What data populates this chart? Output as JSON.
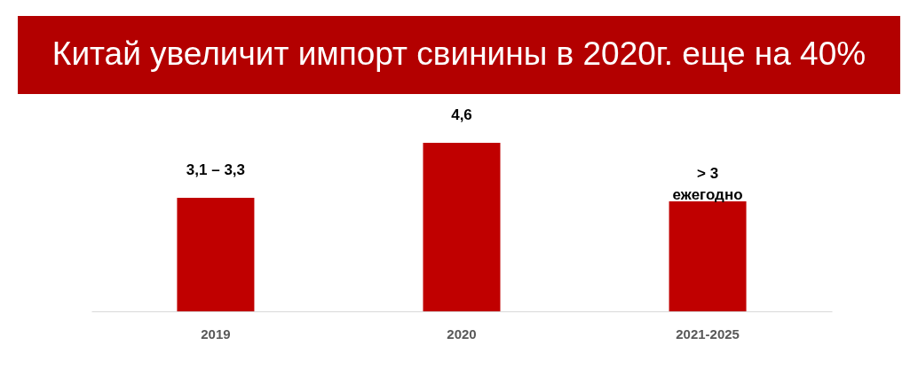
{
  "chart_data": {
    "type": "bar",
    "title": "Китай увеличит импорт свинины в 2020г. еще на 40%",
    "categories": [
      "2019",
      "2020",
      "2021-2025"
    ],
    "values": [
      3.1,
      4.6,
      3
    ],
    "value_labels": [
      "3,1 – 3,3",
      "4,6",
      "> 3\nежегодно"
    ],
    "color": "#c00000",
    "grid": false
  }
}
